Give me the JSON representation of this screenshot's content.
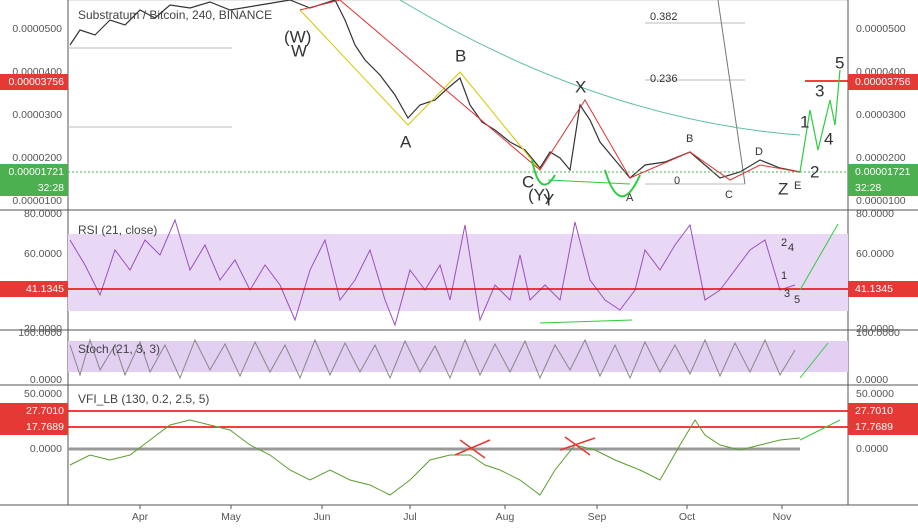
{
  "header": {
    "symbol": "Substratum / Bitcoin, 240, BINANCE"
  },
  "panes": [
    {
      "name": "price",
      "ticks": [
        "0.0000500",
        "0.0000400",
        "0.0000300",
        "0.0000200",
        "0.0000100"
      ],
      "highlights": [
        "0.00003756",
        "0.00001721",
        "32:28"
      ]
    },
    {
      "name": "rsi",
      "title": "RSI (21, close)",
      "ticks": [
        "80.0000",
        "60.0000",
        "20.0000"
      ],
      "highlights": [
        "41.1345"
      ]
    },
    {
      "name": "stoch",
      "title": "Stoch (21, 3, 3)",
      "ticks": [
        "100.0000",
        "0.0000"
      ],
      "highlights": []
    },
    {
      "name": "vfi",
      "title": "VFI_LB (130, 0.2, 2.5, 5)",
      "ticks": [
        "50.0000",
        "0.0000"
      ],
      "highlights": [
        "27.7010",
        "17.7689"
      ]
    }
  ],
  "x_axis": {
    "labels": [
      "Apr",
      "May",
      "Jun",
      "Jul",
      "Aug",
      "Sep",
      "Oct",
      "Nov"
    ]
  },
  "annotations": {
    "fib": [
      "0.382",
      "0.236",
      "0"
    ],
    "waves": [
      "(W)",
      "W",
      "A",
      "B",
      "C",
      "(Y)",
      "Y",
      "X",
      "A",
      "B",
      "C",
      "D",
      "E",
      "Z",
      "1",
      "2",
      "3",
      "4",
      "5"
    ],
    "rsi_counts": [
      "1",
      "2",
      "3",
      "4",
      "5"
    ]
  }
}
